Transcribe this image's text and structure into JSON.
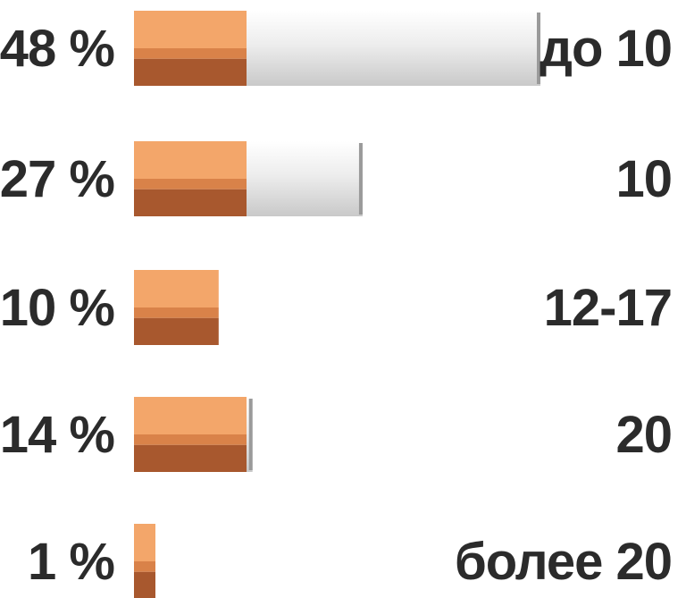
{
  "chart_data": {
    "type": "bar",
    "orientation": "horizontal",
    "style": "cigarette",
    "categories": [
      "до 10",
      "10",
      "12-17",
      "20",
      "более 20"
    ],
    "values": [
      48,
      27,
      10,
      14,
      1
    ],
    "value_labels": [
      "48 %",
      "27 %",
      "10 %",
      "14 %",
      "1 %"
    ],
    "xlim": [
      0,
      48
    ],
    "grid": false,
    "legend": "none"
  },
  "colors": {
    "filter_light": "#f3a66a",
    "filter_mid": "#d98249",
    "filter_dark": "#a8582e",
    "paper": "#e4e4e4",
    "paper_edge": "#9a9a9a",
    "text": "#2b2b2b"
  }
}
